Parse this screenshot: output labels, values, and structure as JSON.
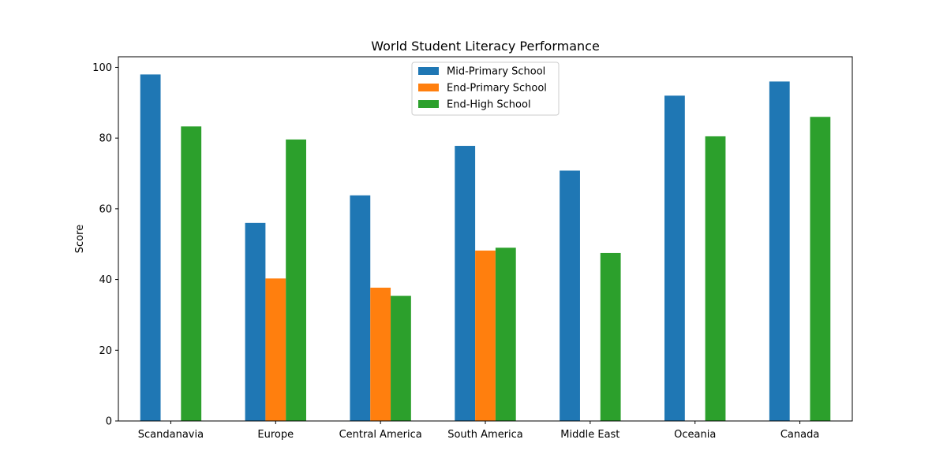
{
  "chart_data": {
    "type": "bar",
    "title": "World Student Literacy Performance",
    "xlabel": "",
    "ylabel": "Score",
    "ylim": [
      0,
      103
    ],
    "yticks": [
      0,
      20,
      40,
      60,
      80,
      100
    ],
    "grid": false,
    "legend_position": "top-center",
    "categories": [
      "Scandanavia",
      "Europe",
      "Central America",
      "South America",
      "Middle East",
      "Oceania",
      "Canada"
    ],
    "series": [
      {
        "name": "Mid-Primary School",
        "color": "#1f77b4",
        "values": [
          98,
          56,
          63.8,
          77.8,
          70.8,
          92,
          96
        ]
      },
      {
        "name": "End-Primary School",
        "color": "#ff7f0e",
        "values": [
          null,
          40.3,
          37.7,
          48.2,
          null,
          null,
          null
        ]
      },
      {
        "name": "End-High School",
        "color": "#2ca02c",
        "values": [
          83.3,
          79.6,
          35.4,
          49,
          47.5,
          80.5,
          86
        ]
      }
    ]
  }
}
